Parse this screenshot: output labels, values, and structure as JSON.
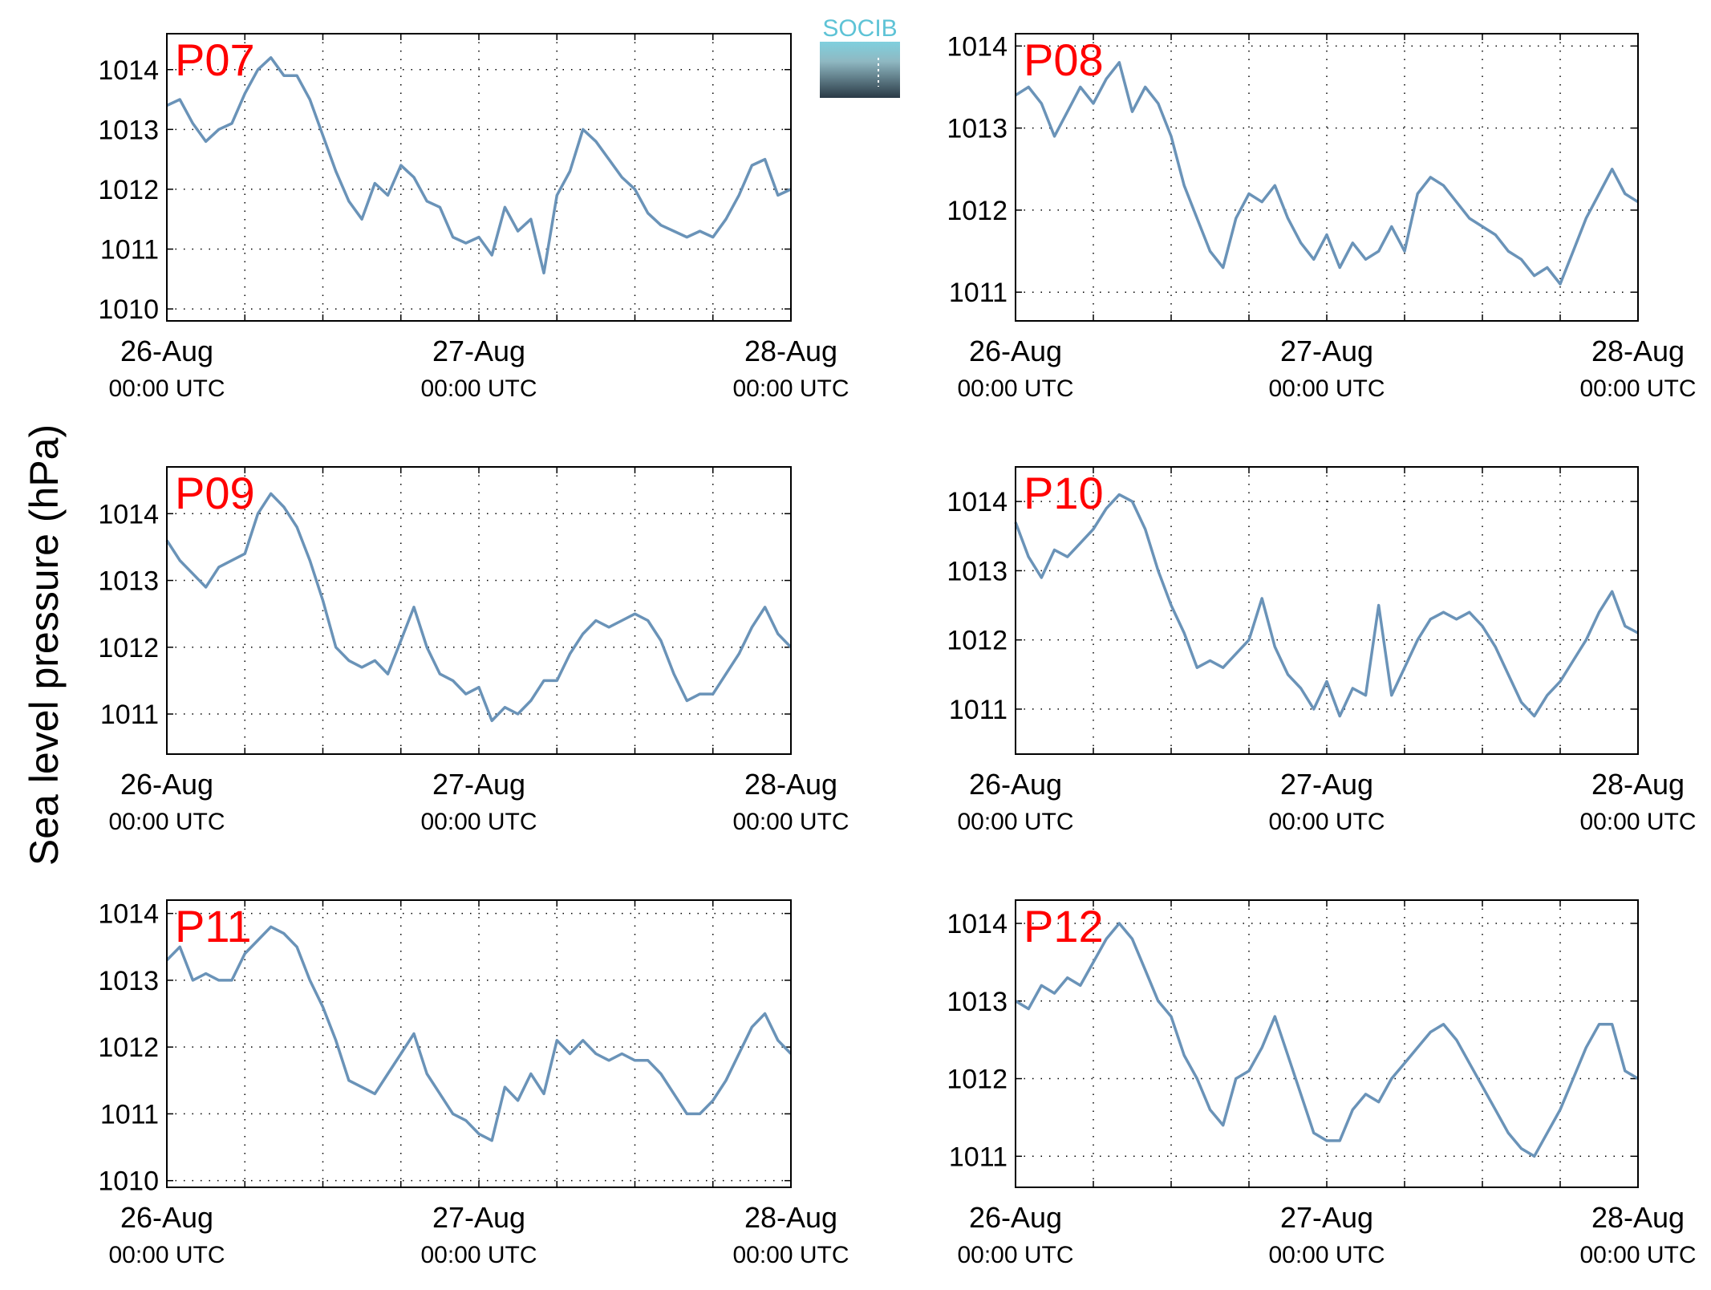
{
  "figure": {
    "ylabel": "Sea level pressure (hPa)",
    "logo_text": "SOCIB",
    "series_color": "#6a93b8",
    "label_color": "#ff0000"
  },
  "chart_data": [
    {
      "type": "line",
      "title": "P07",
      "xlabel": "",
      "ylabel": "Sea level pressure (hPa)",
      "xlim": [
        0,
        48
      ],
      "ylim": [
        1009.8,
        1014.6
      ],
      "yticks": [
        1010,
        1011,
        1012,
        1013,
        1014
      ],
      "xticks": [
        {
          "x": 0,
          "date": "26-Aug",
          "time": "00:00 UTC"
        },
        {
          "x": 24,
          "date": "27-Aug",
          "time": "00:00 UTC"
        },
        {
          "x": 48,
          "date": "28-Aug",
          "time": "00:00 UTC"
        }
      ],
      "grid": true,
      "series": [
        {
          "color": "#6a93b8",
          "x": [
            0,
            1,
            2,
            3,
            4,
            5,
            6,
            7,
            8,
            9,
            10,
            11,
            12,
            13,
            14,
            15,
            16,
            17,
            18,
            19,
            20,
            21,
            22,
            23,
            24,
            25,
            26,
            27,
            28,
            29,
            30,
            31,
            32,
            33,
            34,
            35,
            36,
            37,
            38,
            39,
            40,
            41,
            42,
            43,
            44,
            45,
            46,
            47,
            48
          ],
          "y": [
            1013.4,
            1013.5,
            1013.1,
            1012.8,
            1013.0,
            1013.1,
            1013.6,
            1014.0,
            1014.2,
            1013.9,
            1013.9,
            1013.5,
            1012.9,
            1012.3,
            1011.8,
            1011.5,
            1012.1,
            1011.9,
            1012.4,
            1012.2,
            1011.8,
            1011.7,
            1011.2,
            1011.1,
            1011.2,
            1010.9,
            1011.7,
            1011.3,
            1011.5,
            1010.6,
            1011.9,
            1012.3,
            1013.0,
            1012.8,
            1012.5,
            1012.2,
            1012.0,
            1011.6,
            1011.4,
            1011.3,
            1011.2,
            1011.3,
            1011.2,
            1011.5,
            1011.9,
            1012.4,
            1012.5,
            1011.9,
            1012.0
          ]
        }
      ]
    },
    {
      "type": "line",
      "title": "P08",
      "xlabel": "",
      "ylabel": "Sea level pressure (hPa)",
      "xlim": [
        0,
        48
      ],
      "ylim": [
        1010.65,
        1014.15
      ],
      "yticks": [
        1011,
        1012,
        1013,
        1014
      ],
      "xticks": [
        {
          "x": 0,
          "date": "26-Aug",
          "time": "00:00 UTC"
        },
        {
          "x": 24,
          "date": "27-Aug",
          "time": "00:00 UTC"
        },
        {
          "x": 48,
          "date": "28-Aug",
          "time": "00:00 UTC"
        }
      ],
      "grid": true,
      "series": [
        {
          "color": "#6a93b8",
          "x": [
            0,
            1,
            2,
            3,
            4,
            5,
            6,
            7,
            8,
            9,
            10,
            11,
            12,
            13,
            14,
            15,
            16,
            17,
            18,
            19,
            20,
            21,
            22,
            23,
            24,
            25,
            26,
            27,
            28,
            29,
            30,
            31,
            32,
            33,
            34,
            35,
            36,
            37,
            38,
            39,
            40,
            41,
            42,
            43,
            44,
            45,
            46,
            47,
            48
          ],
          "y": [
            1013.4,
            1013.5,
            1013.3,
            1012.9,
            1013.2,
            1013.5,
            1013.3,
            1013.6,
            1013.8,
            1013.2,
            1013.5,
            1013.3,
            1012.9,
            1012.3,
            1011.9,
            1011.5,
            1011.3,
            1011.9,
            1012.2,
            1012.1,
            1012.3,
            1011.9,
            1011.6,
            1011.4,
            1011.7,
            1011.3,
            1011.6,
            1011.4,
            1011.5,
            1011.8,
            1011.5,
            1012.2,
            1012.4,
            1012.3,
            1012.1,
            1011.9,
            1011.8,
            1011.7,
            1011.5,
            1011.4,
            1011.2,
            1011.3,
            1011.1,
            1011.5,
            1011.9,
            1012.2,
            1012.5,
            1012.2,
            1012.1
          ]
        }
      ]
    },
    {
      "type": "line",
      "title": "P09",
      "xlabel": "",
      "ylabel": "Sea level pressure (hPa)",
      "xlim": [
        0,
        48
      ],
      "ylim": [
        1010.4,
        1014.7
      ],
      "yticks": [
        1011,
        1012,
        1013,
        1014
      ],
      "xticks": [
        {
          "x": 0,
          "date": "26-Aug",
          "time": "00:00 UTC"
        },
        {
          "x": 24,
          "date": "27-Aug",
          "time": "00:00 UTC"
        },
        {
          "x": 48,
          "date": "28-Aug",
          "time": "00:00 UTC"
        }
      ],
      "grid": true,
      "series": [
        {
          "color": "#6a93b8",
          "x": [
            0,
            1,
            2,
            3,
            4,
            5,
            6,
            7,
            8,
            9,
            10,
            11,
            12,
            13,
            14,
            15,
            16,
            17,
            18,
            19,
            20,
            21,
            22,
            23,
            24,
            25,
            26,
            27,
            28,
            29,
            30,
            31,
            32,
            33,
            34,
            35,
            36,
            37,
            38,
            39,
            40,
            41,
            42,
            43,
            44,
            45,
            46,
            47,
            48
          ],
          "y": [
            1013.6,
            1013.3,
            1013.1,
            1012.9,
            1013.2,
            1013.3,
            1013.4,
            1014.0,
            1014.3,
            1014.1,
            1013.8,
            1013.3,
            1012.7,
            1012.0,
            1011.8,
            1011.7,
            1011.8,
            1011.6,
            1012.1,
            1012.6,
            1012.0,
            1011.6,
            1011.5,
            1011.3,
            1011.4,
            1010.9,
            1011.1,
            1011.0,
            1011.2,
            1011.5,
            1011.5,
            1011.9,
            1012.2,
            1012.4,
            1012.3,
            1012.4,
            1012.5,
            1012.4,
            1012.1,
            1011.6,
            1011.2,
            1011.3,
            1011.3,
            1011.6,
            1011.9,
            1012.3,
            1012.6,
            1012.2,
            1012.0
          ]
        }
      ]
    },
    {
      "type": "line",
      "title": "P10",
      "xlabel": "",
      "ylabel": "Sea level pressure (hPa)",
      "xlim": [
        0,
        48
      ],
      "ylim": [
        1010.35,
        1014.5
      ],
      "yticks": [
        1011,
        1012,
        1013,
        1014
      ],
      "xticks": [
        {
          "x": 0,
          "date": "26-Aug",
          "time": "00:00 UTC"
        },
        {
          "x": 24,
          "date": "27-Aug",
          "time": "00:00 UTC"
        },
        {
          "x": 48,
          "date": "28-Aug",
          "time": "00:00 UTC"
        }
      ],
      "grid": true,
      "series": [
        {
          "color": "#6a93b8",
          "x": [
            0,
            1,
            2,
            3,
            4,
            5,
            6,
            7,
            8,
            9,
            10,
            11,
            12,
            13,
            14,
            15,
            16,
            17,
            18,
            19,
            20,
            21,
            22,
            23,
            24,
            25,
            26,
            27,
            28,
            29,
            30,
            31,
            32,
            33,
            34,
            35,
            36,
            37,
            38,
            39,
            40,
            41,
            42,
            43,
            44,
            45,
            46,
            47,
            48
          ],
          "y": [
            1013.7,
            1013.2,
            1012.9,
            1013.3,
            1013.2,
            1013.4,
            1013.6,
            1013.9,
            1014.1,
            1014.0,
            1013.6,
            1013.0,
            1012.5,
            1012.1,
            1011.6,
            1011.7,
            1011.6,
            1011.8,
            1012.0,
            1012.6,
            1011.9,
            1011.5,
            1011.3,
            1011.0,
            1011.4,
            1010.9,
            1011.3,
            1011.2,
            1012.5,
            1011.2,
            1011.6,
            1012.0,
            1012.3,
            1012.4,
            1012.3,
            1012.4,
            1012.2,
            1011.9,
            1011.5,
            1011.1,
            1010.9,
            1011.2,
            1011.4,
            1011.7,
            1012.0,
            1012.4,
            1012.7,
            1012.2,
            1012.1
          ]
        }
      ]
    },
    {
      "type": "line",
      "title": "P11",
      "xlabel": "",
      "ylabel": "Sea level pressure (hPa)",
      "xlim": [
        0,
        48
      ],
      "ylim": [
        1009.9,
        1014.2
      ],
      "yticks": [
        1010,
        1011,
        1012,
        1013,
        1014
      ],
      "xticks": [
        {
          "x": 0,
          "date": "26-Aug",
          "time": "00:00 UTC"
        },
        {
          "x": 24,
          "date": "27-Aug",
          "time": "00:00 UTC"
        },
        {
          "x": 48,
          "date": "28-Aug",
          "time": "00:00 UTC"
        }
      ],
      "grid": true,
      "series": [
        {
          "color": "#6a93b8",
          "x": [
            0,
            1,
            2,
            3,
            4,
            5,
            6,
            7,
            8,
            9,
            10,
            11,
            12,
            13,
            14,
            15,
            16,
            17,
            18,
            19,
            20,
            21,
            22,
            23,
            24,
            25,
            26,
            27,
            28,
            29,
            30,
            31,
            32,
            33,
            34,
            35,
            36,
            37,
            38,
            39,
            40,
            41,
            42,
            43,
            44,
            45,
            46,
            47,
            48
          ],
          "y": [
            1013.3,
            1013.5,
            1013.0,
            1013.1,
            1013.0,
            1013.0,
            1013.4,
            1013.6,
            1013.8,
            1013.7,
            1013.5,
            1013.0,
            1012.6,
            1012.1,
            1011.5,
            1011.4,
            1011.3,
            1011.6,
            1011.9,
            1012.2,
            1011.6,
            1011.3,
            1011.0,
            1010.9,
            1010.7,
            1010.6,
            1011.4,
            1011.2,
            1011.6,
            1011.3,
            1012.1,
            1011.9,
            1012.1,
            1011.9,
            1011.8,
            1011.9,
            1011.8,
            1011.8,
            1011.6,
            1011.3,
            1011.0,
            1011.0,
            1011.2,
            1011.5,
            1011.9,
            1012.3,
            1012.5,
            1012.1,
            1011.9
          ]
        }
      ]
    },
    {
      "type": "line",
      "title": "P12",
      "xlabel": "",
      "ylabel": "Sea level pressure (hPa)",
      "xlim": [
        0,
        48
      ],
      "ylim": [
        1010.6,
        1014.3
      ],
      "yticks": [
        1011,
        1012,
        1013,
        1014
      ],
      "xticks": [
        {
          "x": 0,
          "date": "26-Aug",
          "time": "00:00 UTC"
        },
        {
          "x": 24,
          "date": "27-Aug",
          "time": "00:00 UTC"
        },
        {
          "x": 48,
          "date": "28-Aug",
          "time": "00:00 UTC"
        }
      ],
      "grid": true,
      "series": [
        {
          "color": "#6a93b8",
          "x": [
            0,
            1,
            2,
            3,
            4,
            5,
            6,
            7,
            8,
            9,
            10,
            11,
            12,
            13,
            14,
            15,
            16,
            17,
            18,
            19,
            20,
            21,
            22,
            23,
            24,
            25,
            26,
            27,
            28,
            29,
            30,
            31,
            32,
            33,
            34,
            35,
            36,
            37,
            38,
            39,
            40,
            41,
            42,
            43,
            44,
            45,
            46,
            47,
            48
          ],
          "y": [
            1013.0,
            1012.9,
            1013.2,
            1013.1,
            1013.3,
            1013.2,
            1013.5,
            1013.8,
            1014.0,
            1013.8,
            1013.4,
            1013.0,
            1012.8,
            1012.3,
            1012.0,
            1011.6,
            1011.4,
            1012.0,
            1012.1,
            1012.4,
            1012.8,
            1012.3,
            1011.8,
            1011.3,
            1011.2,
            1011.2,
            1011.6,
            1011.8,
            1011.7,
            1012.0,
            1012.2,
            1012.4,
            1012.6,
            1012.7,
            1012.5,
            1012.2,
            1011.9,
            1011.6,
            1011.3,
            1011.1,
            1011.0,
            1011.3,
            1011.6,
            1012.0,
            1012.4,
            1012.7,
            1012.7,
            1012.1,
            1012.0
          ]
        }
      ]
    }
  ]
}
